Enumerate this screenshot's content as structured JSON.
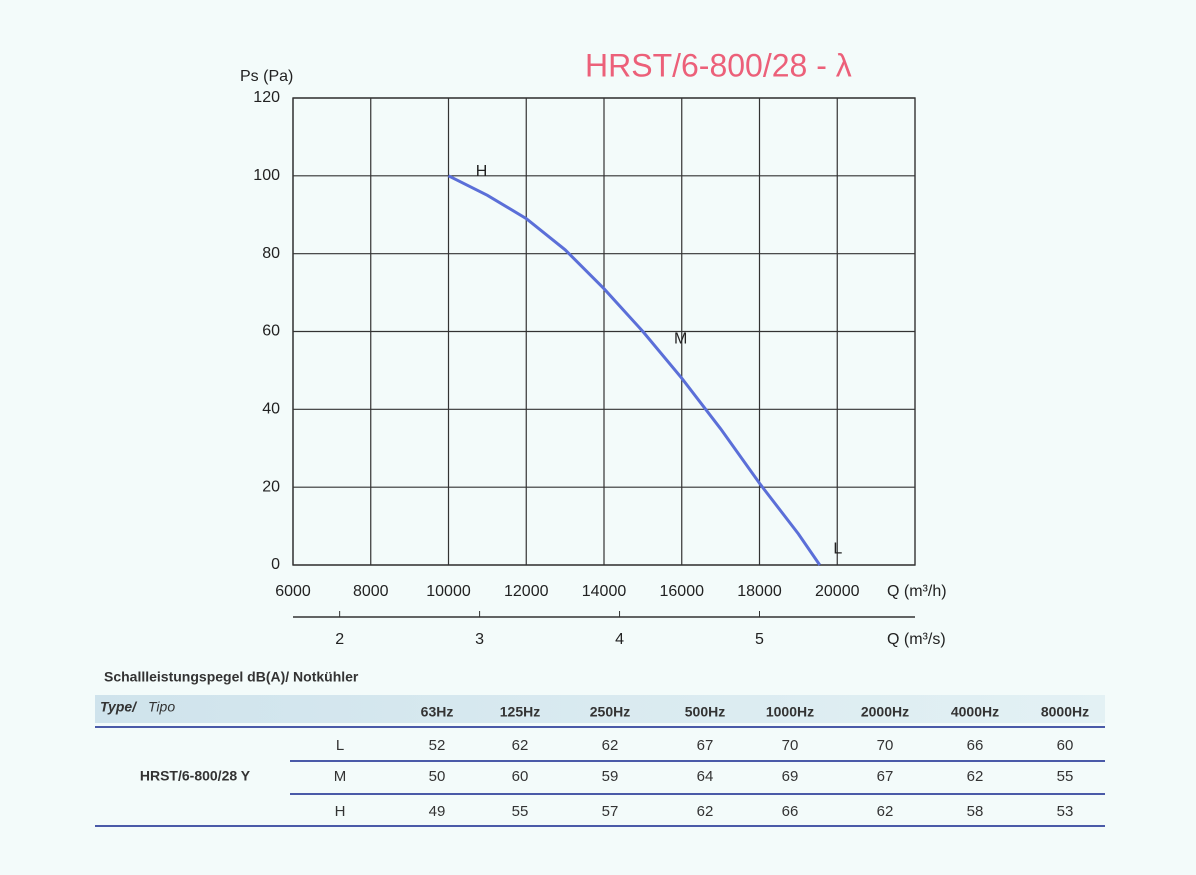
{
  "chart_data": {
    "type": "line",
    "title": "HRST/6-800/28 - λ",
    "ylabel": "Ps (Pa)",
    "xlabel": "Q (m³/h)",
    "x2label": "Q (m³/s)",
    "x": [
      10000,
      11000,
      12000,
      13000,
      14000,
      15000,
      16000,
      17000,
      18000,
      19000,
      19550
    ],
    "series": [
      {
        "color": "#5b6fd8",
        "values": [
          100,
          95,
          89,
          81,
          71,
          60,
          48,
          35,
          21,
          8,
          0
        ]
      }
    ],
    "xlim": [
      6000,
      22000
    ],
    "xticks": [
      6000,
      8000,
      10000,
      12000,
      14000,
      16000,
      18000,
      20000
    ],
    "x2lim": [
      1.6667,
      6.1111
    ],
    "x2ticks": [
      2,
      3,
      4,
      5
    ],
    "ylim": [
      0,
      120
    ],
    "yticks": [
      0,
      20,
      40,
      60,
      80,
      100,
      120
    ],
    "grid": true,
    "annotations": [
      {
        "text": "H",
        "x": 10700,
        "y": 101
      },
      {
        "text": "M",
        "x": 15800,
        "y": 58
      },
      {
        "text": "L",
        "x": 19900,
        "y": 4
      }
    ]
  },
  "table": {
    "title": "Schallleistungspegel dB(A)/ Notkühler",
    "header": {
      "type": "Type/",
      "tipo": "Tipo"
    },
    "columns": [
      "63Hz",
      "125Hz",
      "250Hz",
      "500Hz",
      "1000Hz",
      "2000Hz",
      "4000Hz",
      "8000Hz"
    ],
    "row_label": "HRST/6-800/28 Y",
    "levels": [
      "L",
      "M",
      "H"
    ],
    "values": [
      [
        52,
        62,
        62,
        67,
        70,
        70,
        66,
        60
      ],
      [
        50,
        60,
        59,
        64,
        69,
        67,
        62,
        55
      ],
      [
        49,
        55,
        57,
        62,
        66,
        62,
        58,
        53
      ]
    ]
  }
}
